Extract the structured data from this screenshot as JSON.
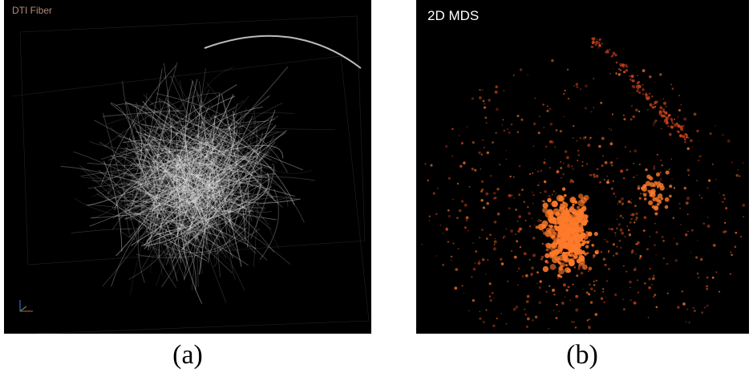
{
  "panels": [
    {
      "label": "DTI Fiber",
      "caption": "(a)"
    },
    {
      "label": "2D MDS",
      "caption": "(b)"
    }
  ],
  "colors": {
    "fiber": "#e6e6e6",
    "point_bright": "#ff7a2a",
    "point_dark": "#c8401c",
    "background": "#000000"
  }
}
